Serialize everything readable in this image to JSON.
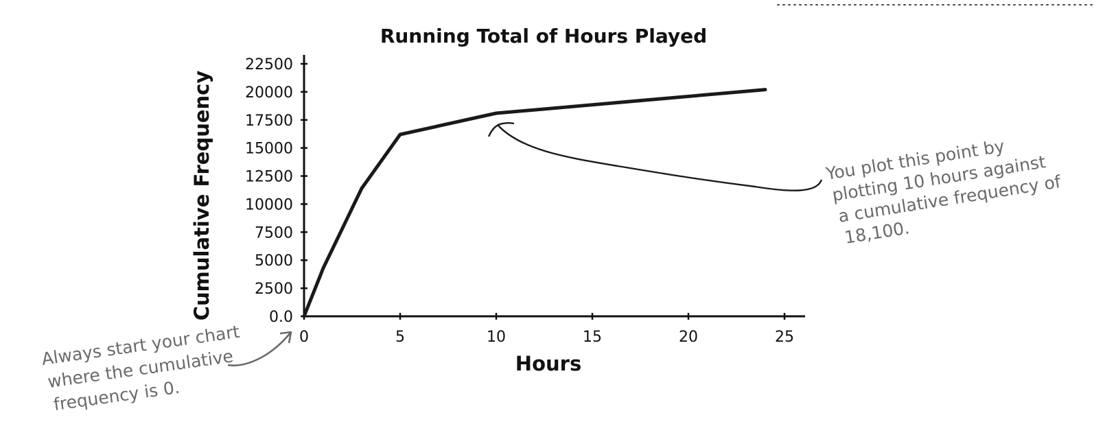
{
  "chart_data": {
    "type": "line",
    "title": "Running Total of Hours Played",
    "xlabel": "Hours",
    "ylabel": "Cumulative Frequency",
    "xlim": [
      0,
      26
    ],
    "ylim": [
      0,
      22500
    ],
    "xticks": [
      0,
      5,
      10,
      15,
      20,
      25
    ],
    "xtick_labels": [
      "0",
      "5",
      "10",
      "15",
      "20",
      "25"
    ],
    "yticks": [
      0,
      2500,
      5000,
      7500,
      10000,
      12500,
      15000,
      17500,
      20000,
      22500
    ],
    "ytick_labels": [
      "0.0",
      "2500",
      "5000",
      "7500",
      "10000",
      "12500",
      "15000",
      "17500",
      "20000",
      "22500"
    ],
    "grid": false,
    "series": [
      {
        "x": [
          0,
          1,
          3,
          5,
          10,
          24
        ],
        "y": [
          0,
          4300,
          11400,
          16200,
          18100,
          20200
        ]
      }
    ]
  },
  "annotations": [
    {
      "lines": [
        "You plot this point by",
        "plotting 10 hours against",
        "a cumulative frequency of",
        "18,100."
      ],
      "target": {
        "x": 10,
        "y": 18100
      }
    },
    {
      "lines": [
        "Always start your chart",
        "where the cumulative",
        "frequency is 0."
      ],
      "target": {
        "x": 0,
        "y": 0
      }
    }
  ]
}
